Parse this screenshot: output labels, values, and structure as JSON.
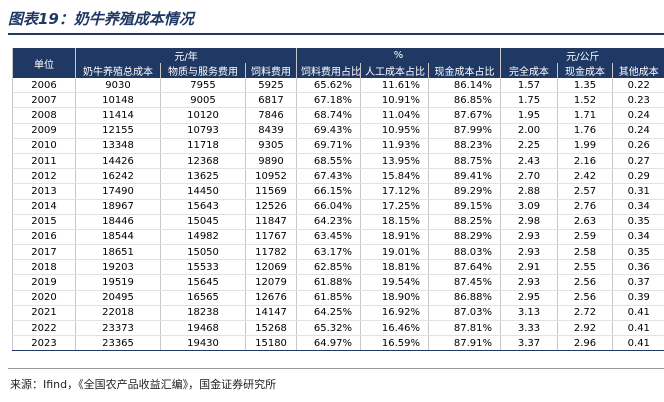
{
  "header": {
    "title": "图表19：奶牛养殖成本情况"
  },
  "table": {
    "group_headers": [
      "单位",
      "元/年",
      "%",
      "元/公斤"
    ],
    "columns": [
      "奶牛养殖总成本",
      "物质与服务费用",
      "饲料费用",
      "饲料费用占比",
      "人工成本占比",
      "现金成本占比",
      "完全成本",
      "现金成本",
      "其他成本"
    ],
    "rows": [
      [
        "2006",
        "9030",
        "7955",
        "5925",
        "65.62%",
        "11.61%",
        "86.14%",
        "1.57",
        "1.35",
        "0.22"
      ],
      [
        "2007",
        "10148",
        "9005",
        "6817",
        "67.18%",
        "10.91%",
        "86.85%",
        "1.75",
        "1.52",
        "0.23"
      ],
      [
        "2008",
        "11414",
        "10120",
        "7846",
        "68.74%",
        "11.04%",
        "87.67%",
        "1.95",
        "1.71",
        "0.24"
      ],
      [
        "2009",
        "12155",
        "10793",
        "8439",
        "69.43%",
        "10.95%",
        "87.99%",
        "2.00",
        "1.76",
        "0.24"
      ],
      [
        "2010",
        "13348",
        "11718",
        "9305",
        "69.71%",
        "11.93%",
        "88.23%",
        "2.25",
        "1.99",
        "0.26"
      ],
      [
        "2011",
        "14426",
        "12368",
        "9890",
        "68.55%",
        "13.95%",
        "88.75%",
        "2.43",
        "2.16",
        "0.27"
      ],
      [
        "2012",
        "16242",
        "13625",
        "10952",
        "67.43%",
        "15.84%",
        "89.41%",
        "2.70",
        "2.42",
        "0.29"
      ],
      [
        "2013",
        "17490",
        "14450",
        "11569",
        "66.15%",
        "17.12%",
        "89.29%",
        "2.88",
        "2.57",
        "0.31"
      ],
      [
        "2014",
        "18967",
        "15643",
        "12526",
        "66.04%",
        "17.25%",
        "89.15%",
        "3.09",
        "2.76",
        "0.34"
      ],
      [
        "2015",
        "18446",
        "15045",
        "11847",
        "64.23%",
        "18.15%",
        "88.25%",
        "2.98",
        "2.63",
        "0.35"
      ],
      [
        "2016",
        "18544",
        "14982",
        "11767",
        "63.45%",
        "18.91%",
        "88.29%",
        "2.93",
        "2.59",
        "0.34"
      ],
      [
        "2017",
        "18651",
        "15050",
        "11782",
        "63.17%",
        "19.01%",
        "88.03%",
        "2.93",
        "2.58",
        "0.35"
      ],
      [
        "2018",
        "19203",
        "15533",
        "12069",
        "62.85%",
        "18.81%",
        "87.64%",
        "2.91",
        "2.55",
        "0.36"
      ],
      [
        "2019",
        "19519",
        "15645",
        "12079",
        "61.88%",
        "19.54%",
        "87.45%",
        "2.93",
        "2.56",
        "0.37"
      ],
      [
        "2020",
        "20495",
        "16565",
        "12676",
        "61.85%",
        "18.90%",
        "86.88%",
        "2.95",
        "2.56",
        "0.39"
      ],
      [
        "2021",
        "22018",
        "18238",
        "14147",
        "64.25%",
        "16.92%",
        "87.03%",
        "3.13",
        "2.72",
        "0.41"
      ],
      [
        "2022",
        "23373",
        "19468",
        "15268",
        "65.32%",
        "16.46%",
        "87.81%",
        "3.33",
        "2.92",
        "0.41"
      ],
      [
        "2023",
        "23365",
        "19430",
        "15180",
        "64.97%",
        "16.59%",
        "87.91%",
        "3.37",
        "2.96",
        "0.41"
      ]
    ]
  },
  "source": "来源：Ifind，《全国农产品收益汇编》，国金证券研究所"
}
